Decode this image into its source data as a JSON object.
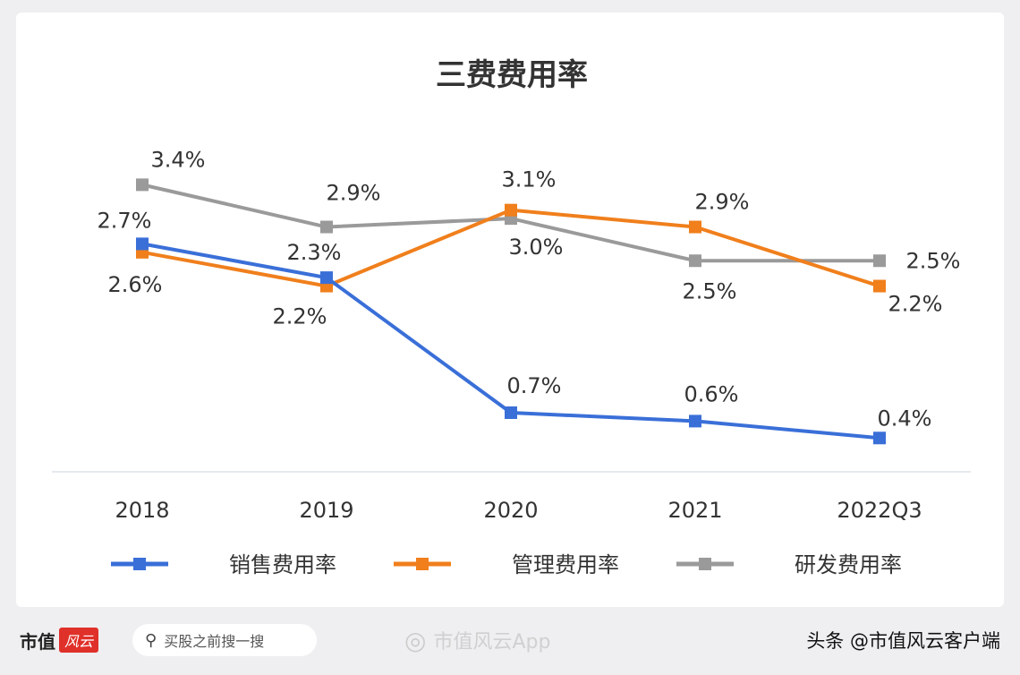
{
  "chart_data": {
    "type": "line",
    "title": "三费费用率",
    "categories": [
      "2018",
      "2019",
      "2020",
      "2021",
      "2022Q3"
    ],
    "unit": "%",
    "ylim": [
      0,
      3.6
    ],
    "grid": false,
    "legend_position": "bottom",
    "series": [
      {
        "name": "销售费用率",
        "color": "#3a6fd8",
        "values": [
          2.7,
          2.3,
          0.7,
          0.6,
          0.4
        ]
      },
      {
        "name": "管理费用率",
        "color": "#f07f1c",
        "values": [
          2.6,
          2.2,
          3.1,
          2.9,
          2.2
        ]
      },
      {
        "name": "研发费用率",
        "color": "#9a9a9a",
        "values": [
          3.4,
          2.9,
          3.0,
          2.5,
          2.5
        ]
      }
    ]
  },
  "footer": {
    "brand": "市值",
    "logo_text": "风云",
    "search_placeholder": "买股之前搜一搜",
    "watermark": "市值风云App",
    "source": "头条 @市值风云客户端"
  }
}
